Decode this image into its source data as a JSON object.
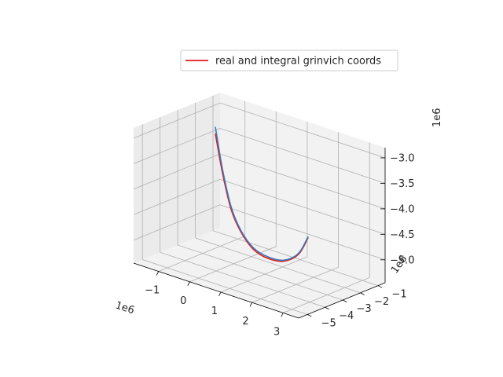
{
  "chart_data": {
    "type": "line",
    "projection": "3d",
    "grid": true,
    "legend": {
      "placement": "top-right",
      "entries": [
        {
          "label": "real and integral grinvich coords",
          "color": "#e41a1c"
        }
      ]
    },
    "offsets": {
      "x": "1e6",
      "y": "1e6",
      "z": "1e6"
    },
    "axes": {
      "x": {
        "ticks": [
          "−1",
          "0",
          "1",
          "2",
          "3"
        ],
        "range": [
          -1.8,
          3.5
        ]
      },
      "y": {
        "ticks": [
          "−5",
          "−4",
          "−3",
          "−2",
          "−1"
        ],
        "range": [
          -5.5,
          -0.6
        ]
      },
      "z": {
        "ticks": [
          "−5.0",
          "−4.5",
          "−4.0",
          "−3.5",
          "−3.0"
        ],
        "range": [
          -5.45,
          -2.8
        ]
      }
    },
    "series": [
      {
        "name": "real and integral grinvich coords",
        "color": "#e41a1c",
        "points": [
          [
            -1.75,
            -0.95,
            -3.55
          ],
          [
            -1.35,
            -1.25,
            -4.2
          ],
          [
            -0.85,
            -1.65,
            -4.75
          ],
          [
            -0.25,
            -2.15,
            -5.0
          ],
          [
            0.55,
            -2.85,
            -5.08
          ],
          [
            1.4,
            -3.55,
            -4.98
          ],
          [
            2.25,
            -4.15,
            -4.78
          ],
          [
            2.95,
            -4.55,
            -4.45
          ],
          [
            3.4,
            -4.8,
            -4.0
          ]
        ]
      },
      {
        "color": "#3a78b8",
        "points": [
          [
            -1.75,
            -0.95,
            -3.42
          ],
          [
            -1.35,
            -1.25,
            -4.13
          ],
          [
            -0.85,
            -1.65,
            -4.7
          ],
          [
            -0.25,
            -2.15,
            -4.97
          ],
          [
            0.55,
            -2.85,
            -5.05
          ],
          [
            1.4,
            -3.55,
            -4.95
          ],
          [
            2.25,
            -4.15,
            -4.76
          ],
          [
            2.95,
            -4.55,
            -4.43
          ],
          [
            3.4,
            -4.8,
            -3.98
          ]
        ]
      }
    ]
  }
}
